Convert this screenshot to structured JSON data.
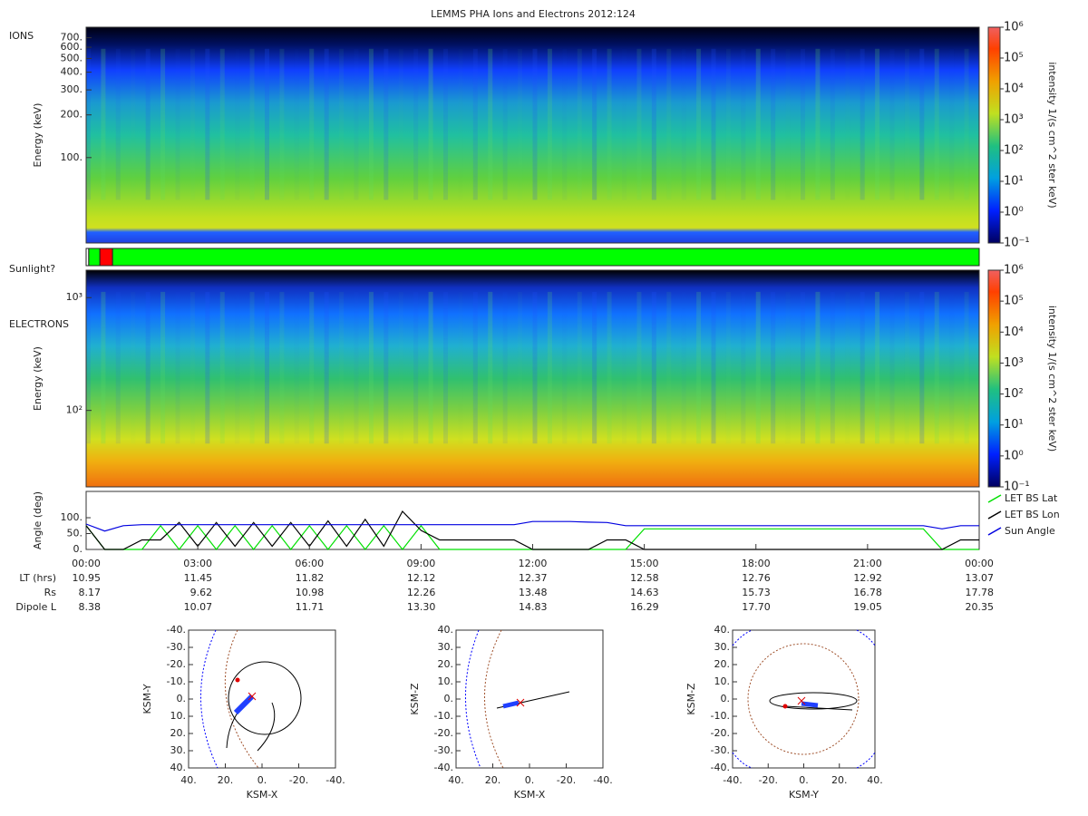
{
  "title": "LEMMS PHA Ions and Electrons  2012:124",
  "chart_data": [
    {
      "type": "spectrogram",
      "label": "IONS",
      "ylabel": "Energy (keV)",
      "ylog": true,
      "ylim": [
        25,
        830
      ],
      "yticks": [
        {
          "value": 100,
          "label": "100."
        },
        {
          "value": 200,
          "label": "200."
        },
        {
          "value": 300,
          "label": "300."
        },
        {
          "value": 400,
          "label": "400."
        },
        {
          "value": 500,
          "label": "500."
        },
        {
          "value": 600,
          "label": "600."
        },
        {
          "value": 700,
          "label": "700."
        }
      ],
      "clog": true,
      "clim": [
        0.1,
        1000000
      ],
      "clabel": "intensity 1/(s cm^2 ster keV)",
      "cticks": [
        {
          "value": 0.1,
          "label": "10⁻¹"
        },
        {
          "value": 1,
          "label": "10⁰"
        },
        {
          "value": 10,
          "label": "10¹"
        },
        {
          "value": 100,
          "label": "10²"
        },
        {
          "value": 1000,
          "label": "10³"
        },
        {
          "value": 10000,
          "label": "10⁴"
        },
        {
          "value": 100000,
          "label": "10⁵"
        },
        {
          "value": 1000000,
          "label": "10⁶"
        }
      ]
    },
    {
      "type": "status",
      "label": "Sunlight?",
      "xlim": [
        0,
        24
      ],
      "segments": [
        {
          "start": 0,
          "end": 0.07,
          "color": "#ffffff"
        },
        {
          "start": 0.07,
          "end": 0.37,
          "color": "#00ff00"
        },
        {
          "start": 0.37,
          "end": 0.71,
          "color": "#ff0000"
        },
        {
          "start": 0.71,
          "end": 24,
          "color": "#00ff00"
        }
      ]
    },
    {
      "type": "spectrogram",
      "label": "ELECTRONS",
      "ylabel": "Energy (keV)",
      "ylog": true,
      "ylim": [
        21,
        1750
      ],
      "yticks": [
        {
          "value": 100,
          "label": "10²"
        },
        {
          "value": 1000,
          "label": "10³"
        }
      ],
      "clog": true,
      "clim": [
        0.1,
        1000000
      ],
      "clabel": "intensity 1/(s cm^2 ster keV)",
      "cticks": [
        {
          "value": 0.1,
          "label": "10⁻¹"
        },
        {
          "value": 1,
          "label": "10⁰"
        },
        {
          "value": 10,
          "label": "10¹"
        },
        {
          "value": 100,
          "label": "10²"
        },
        {
          "value": 1000,
          "label": "10³"
        },
        {
          "value": 10000,
          "label": "10⁴"
        },
        {
          "value": 100000,
          "label": "10⁵"
        },
        {
          "value": 1000000,
          "label": "10⁶"
        }
      ]
    },
    {
      "type": "line",
      "ylabel": "Angle (deg)",
      "xlim": [
        0,
        24
      ],
      "ylim": [
        0,
        183
      ],
      "yticks": [
        {
          "value": 0,
          "label": "0."
        },
        {
          "value": 50,
          "label": "50."
        },
        {
          "value": 100,
          "label": "100."
        }
      ],
      "xticks": [
        {
          "value": 0,
          "label": "00:00"
        },
        {
          "value": 3,
          "label": "03:00"
        },
        {
          "value": 6,
          "label": "06:00"
        },
        {
          "value": 9,
          "label": "09:00"
        },
        {
          "value": 12,
          "label": "12:00"
        },
        {
          "value": 15,
          "label": "15:00"
        },
        {
          "value": 18,
          "label": "18:00"
        },
        {
          "value": 21,
          "label": "21:00"
        },
        {
          "value": 24,
          "label": "00:00"
        }
      ],
      "legend": "right",
      "x": [
        0,
        0.5,
        1,
        1.5,
        2,
        2.5,
        3,
        3.5,
        4,
        4.5,
        5,
        5.5,
        6,
        6.5,
        7,
        7.5,
        8,
        8.5,
        9,
        9.5,
        10,
        10.5,
        11,
        11.5,
        12,
        12.5,
        13,
        13.5,
        14,
        14.5,
        15,
        15.5,
        16,
        16.5,
        17,
        17.5,
        18,
        18.5,
        19,
        19.5,
        20,
        20.5,
        21,
        21.5,
        22,
        22.5,
        23,
        23.5,
        24
      ],
      "series": [
        {
          "name": "LET BS Lat",
          "color": "#00e000",
          "values": [
            75,
            0,
            0,
            0,
            75,
            0,
            75,
            0,
            75,
            0,
            75,
            0,
            75,
            0,
            75,
            0,
            75,
            0,
            75,
            0,
            0,
            0,
            0,
            0,
            0,
            0,
            0,
            0,
            0,
            0,
            65,
            65,
            65,
            65,
            65,
            65,
            65,
            65,
            65,
            65,
            65,
            65,
            65,
            65,
            65,
            65,
            0,
            0,
            0
          ]
        },
        {
          "name": "LET BS Lon",
          "color": "#000000",
          "values": [
            75,
            0,
            0,
            30,
            30,
            85,
            10,
            85,
            10,
            85,
            10,
            85,
            10,
            90,
            10,
            95,
            10,
            120,
            60,
            30,
            30,
            30,
            30,
            30,
            0,
            0,
            0,
            0,
            30,
            30,
            0,
            0,
            0,
            0,
            0,
            0,
            0,
            0,
            0,
            0,
            0,
            0,
            0,
            0,
            0,
            0,
            0,
            30,
            30
          ]
        },
        {
          "name": "Sun Angle",
          "color": "#0000e0",
          "values": [
            80,
            58,
            75,
            78,
            78,
            78,
            78,
            78,
            78,
            78,
            78,
            78,
            78,
            78,
            78,
            78,
            78,
            78,
            78,
            78,
            78,
            78,
            78,
            78,
            88,
            88,
            88,
            86,
            85,
            75,
            75,
            75,
            75,
            75,
            75,
            75,
            75,
            75,
            75,
            75,
            75,
            75,
            75,
            75,
            75,
            75,
            65,
            75,
            75
          ]
        }
      ]
    }
  ],
  "ephemeris": [
    {
      "label": "LT (hrs)",
      "values": [
        "10.95",
        "11.45",
        "11.82",
        "12.12",
        "12.37",
        "12.58",
        "12.76",
        "12.92",
        "13.07"
      ]
    },
    {
      "label": "Rs",
      "values": [
        "8.17",
        "9.62",
        "10.98",
        "12.26",
        "13.48",
        "14.63",
        "15.73",
        "16.78",
        "17.78"
      ]
    },
    {
      "label": "Dipole L",
      "values": [
        "8.38",
        "10.07",
        "11.71",
        "13.30",
        "14.83",
        "16.29",
        "17.70",
        "19.05",
        "20.35"
      ]
    }
  ],
  "orbits": [
    {
      "xlabel": "KSM-X",
      "ylabel": "KSM-Y",
      "xlim": [
        40,
        -40
      ],
      "ylim": [
        40,
        -40
      ],
      "xticks": [
        {
          "value": 40,
          "label": "40."
        },
        {
          "value": 20,
          "label": "20."
        },
        {
          "value": 0,
          "label": "0."
        },
        {
          "value": -20,
          "label": "-20."
        },
        {
          "value": -40,
          "label": "-40."
        }
      ],
      "yticks": [
        {
          "value": -40,
          "label": "-40."
        },
        {
          "value": -30,
          "label": "-30."
        },
        {
          "value": -20,
          "label": "-20."
        },
        {
          "value": -10,
          "label": "-10."
        },
        {
          "value": 0,
          "label": "0."
        },
        {
          "value": 10,
          "label": "10."
        },
        {
          "value": 20,
          "label": "20."
        },
        {
          "value": 30,
          "label": "30."
        },
        {
          "value": 40,
          "label": "40."
        }
      ]
    },
    {
      "xlabel": "KSM-X",
      "ylabel": "KSM-Z",
      "xlim": [
        40,
        -40
      ],
      "ylim": [
        -40,
        40
      ],
      "xticks": [
        {
          "value": 40,
          "label": "40."
        },
        {
          "value": 20,
          "label": "20."
        },
        {
          "value": 0,
          "label": "0."
        },
        {
          "value": -20,
          "label": "-20."
        },
        {
          "value": -40,
          "label": "-40."
        }
      ],
      "yticks": [
        {
          "value": 40,
          "label": "40."
        },
        {
          "value": 30,
          "label": "30."
        },
        {
          "value": 20,
          "label": "20."
        },
        {
          "value": 10,
          "label": "10."
        },
        {
          "value": 0,
          "label": "0."
        },
        {
          "value": -10,
          "label": "-10."
        },
        {
          "value": -20,
          "label": "-20."
        },
        {
          "value": -30,
          "label": "-30."
        },
        {
          "value": -40,
          "label": "-40."
        }
      ]
    },
    {
      "xlabel": "KSM-Y",
      "ylabel": "KSM-Z",
      "xlim": [
        -40,
        40
      ],
      "ylim": [
        -40,
        40
      ],
      "xticks": [
        {
          "value": -40,
          "label": "-40."
        },
        {
          "value": -20,
          "label": "-20."
        },
        {
          "value": 0,
          "label": "0."
        },
        {
          "value": 20,
          "label": "20."
        },
        {
          "value": 40,
          "label": "40."
        }
      ],
      "yticks": [
        {
          "value": 40,
          "label": "40."
        },
        {
          "value": 30,
          "label": "30."
        },
        {
          "value": 20,
          "label": "20."
        },
        {
          "value": 10,
          "label": "10."
        },
        {
          "value": 0,
          "label": "0."
        },
        {
          "value": -10,
          "label": "-10."
        },
        {
          "value": -20,
          "label": "-20."
        },
        {
          "value": -30,
          "label": "-30."
        },
        {
          "value": -40,
          "label": "-40."
        }
      ]
    }
  ]
}
